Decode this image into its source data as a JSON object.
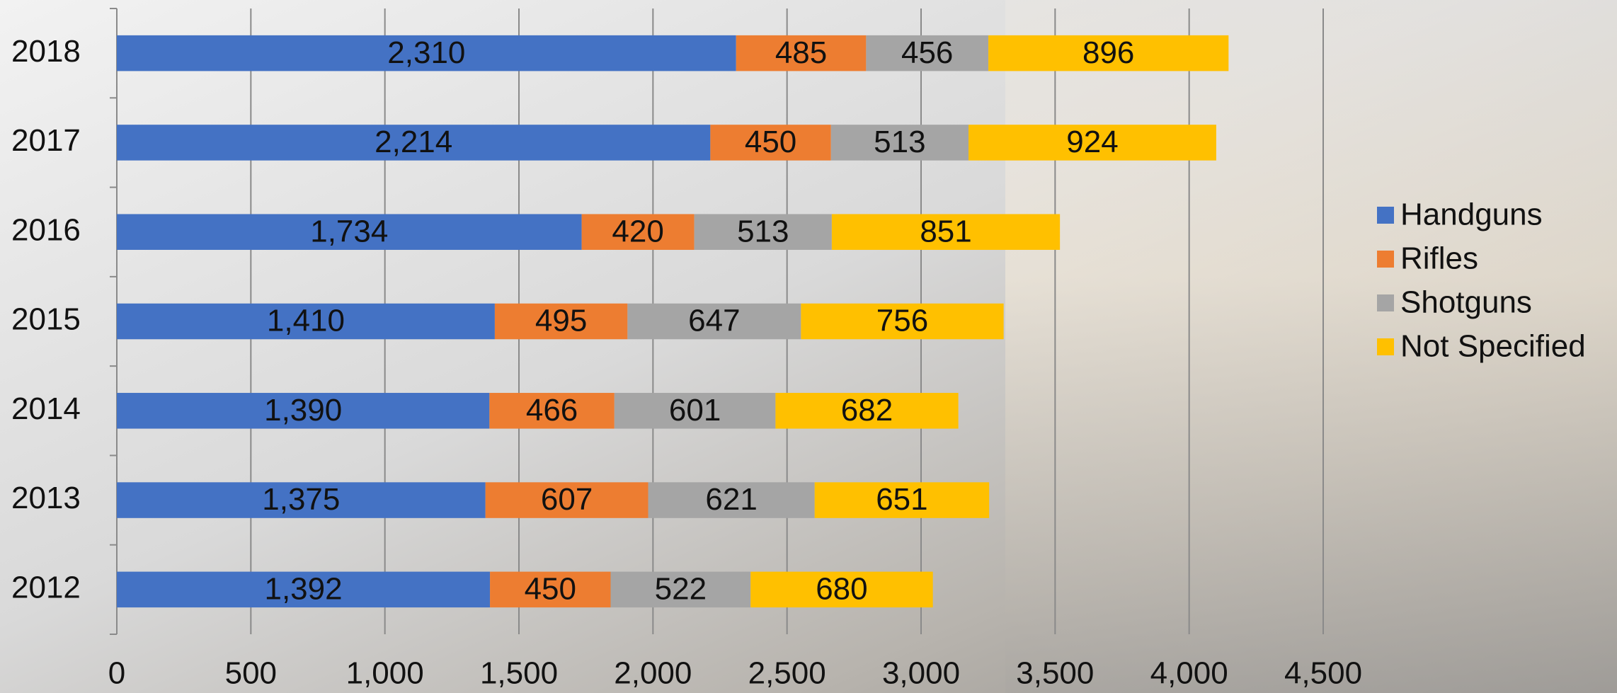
{
  "chart_data": {
    "type": "stacked-bar",
    "orientation": "horizontal",
    "categories": [
      "2018",
      "2017",
      "2016",
      "2015",
      "2014",
      "2013",
      "2012"
    ],
    "series": [
      {
        "name": "Handguns",
        "color": "#4472c4",
        "values": [
          2310,
          2214,
          1734,
          1410,
          1390,
          1375,
          1392
        ],
        "value_labels": [
          "2,310",
          "2,214",
          "1,734",
          "1,410",
          "1,390",
          "1,375",
          "1,392"
        ]
      },
      {
        "name": "Rifles",
        "color": "#ed7d31",
        "values": [
          485,
          450,
          420,
          495,
          466,
          607,
          450
        ]
      },
      {
        "name": "Shotguns",
        "color": "#a5a5a5",
        "values": [
          456,
          513,
          513,
          647,
          601,
          621,
          522
        ]
      },
      {
        "name": "Not Specified",
        "color": "#ffc000",
        "values": [
          896,
          924,
          851,
          756,
          682,
          651,
          680
        ]
      }
    ],
    "xlim": [
      0,
      4500
    ],
    "xticks": [
      0,
      500,
      {
        "value": 1000,
        "label": "1,000"
      },
      {
        "value": 1500,
        "label": "1,500"
      },
      {
        "value": 2000,
        "label": "2,000"
      },
      {
        "value": 2500,
        "label": "2,500"
      },
      {
        "value": 3000,
        "label": "3,000"
      },
      {
        "value": 3500,
        "label": "3,500"
      },
      {
        "value": 4000,
        "label": "4,000"
      },
      {
        "value": 4500,
        "label": "4,500"
      }
    ],
    "grid": true,
    "legend": "right"
  }
}
